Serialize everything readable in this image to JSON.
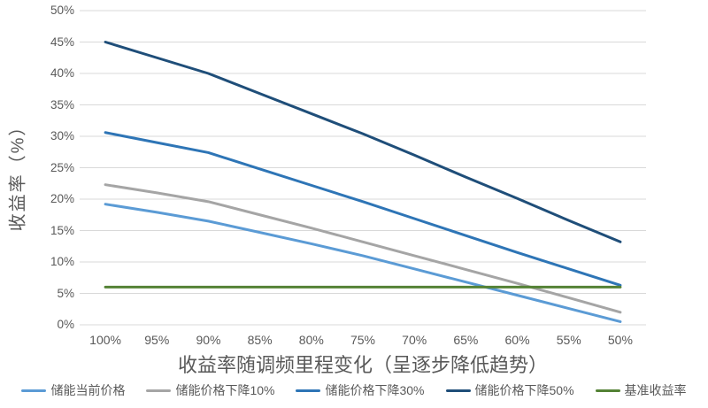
{
  "chart_data": {
    "type": "line",
    "title": "收益率随调频里程变化（呈逐步降低趋势）",
    "ylabel": "收益率（%）",
    "xlabel": "",
    "categories": [
      "100%",
      "95%",
      "90%",
      "85%",
      "80%",
      "75%",
      "70%",
      "65%",
      "60%",
      "55%",
      "50%"
    ],
    "y_ticks": [
      "0%",
      "5%",
      "10%",
      "15%",
      "20%",
      "25%",
      "30%",
      "35%",
      "40%",
      "45%",
      "50%"
    ],
    "ylim": [
      0,
      50
    ],
    "y_tick_step": 5,
    "grid": true,
    "legend_position": "bottom",
    "colors": {
      "gridline": "#D9D9D9",
      "axis_text": "#595959",
      "title_text": "#595959"
    },
    "series": [
      {
        "name": "储能当前价格",
        "color": "#5B9BD5",
        "values": [
          19.2,
          17.9,
          16.5,
          14.7,
          12.9,
          11.0,
          8.9,
          6.8,
          4.7,
          2.6,
          0.5
        ]
      },
      {
        "name": "储能价格下降10%",
        "color": "#A5A5A5",
        "values": [
          22.3,
          21.0,
          19.6,
          17.5,
          15.4,
          13.2,
          11.0,
          8.8,
          6.6,
          4.3,
          2.0
        ]
      },
      {
        "name": "储能价格下降30%",
        "color": "#2E75B6",
        "values": [
          30.6,
          29.0,
          27.4,
          24.8,
          22.2,
          19.6,
          16.9,
          14.2,
          11.5,
          8.9,
          6.3
        ]
      },
      {
        "name": "储能价格下降50%",
        "color": "#1F4E79",
        "values": [
          45.0,
          42.5,
          40.0,
          36.8,
          33.6,
          30.4,
          27.0,
          23.5,
          20.1,
          16.6,
          13.2
        ]
      },
      {
        "name": "基准收益率",
        "color": "#548235",
        "values": [
          6,
          6,
          6,
          6,
          6,
          6,
          6,
          6,
          6,
          6,
          6
        ]
      }
    ]
  }
}
